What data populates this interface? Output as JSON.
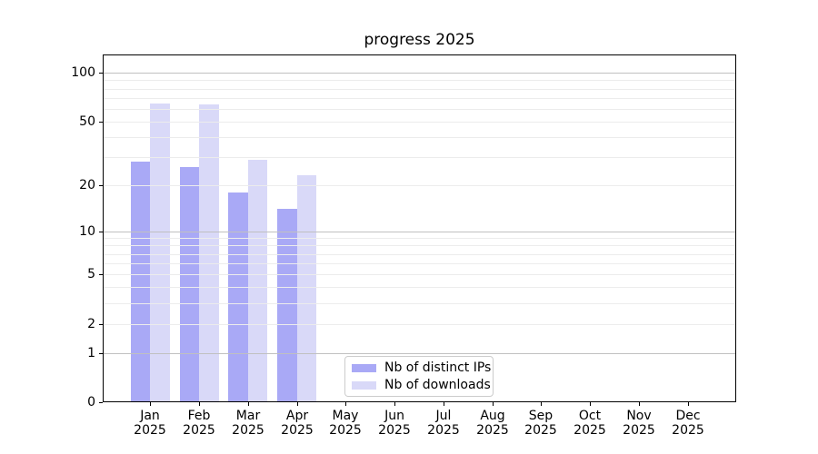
{
  "title": "progress 2025",
  "chart_data": {
    "type": "bar",
    "title": "progress 2025",
    "categories": [
      {
        "month": "Jan",
        "year": "2025"
      },
      {
        "month": "Feb",
        "year": "2025"
      },
      {
        "month": "Mar",
        "year": "2025"
      },
      {
        "month": "Apr",
        "year": "2025"
      },
      {
        "month": "May",
        "year": "2025"
      },
      {
        "month": "Jun",
        "year": "2025"
      },
      {
        "month": "Jul",
        "year": "2025"
      },
      {
        "month": "Aug",
        "year": "2025"
      },
      {
        "month": "Sep",
        "year": "2025"
      },
      {
        "month": "Oct",
        "year": "2025"
      },
      {
        "month": "Nov",
        "year": "2025"
      },
      {
        "month": "Dec",
        "year": "2025"
      }
    ],
    "series": [
      {
        "name": "Nb of distinct IPs",
        "color": "#a9a9f6",
        "values": [
          28,
          26,
          18,
          14,
          null,
          null,
          null,
          null,
          null,
          null,
          null,
          null
        ]
      },
      {
        "name": "Nb of downloads",
        "color": "#d9d9f8",
        "values": [
          65,
          64,
          29,
          23,
          null,
          null,
          null,
          null,
          null,
          null,
          null,
          null
        ]
      }
    ],
    "y_axis": {
      "scale": "log10(value+1)",
      "tick_values": [
        0,
        1,
        2,
        5,
        10,
        20,
        50,
        100
      ],
      "major_grid_values": [
        1,
        10,
        100
      ],
      "minor_grid_values": [
        2,
        3,
        4,
        5,
        6,
        7,
        8,
        9,
        20,
        30,
        40,
        50,
        60,
        70,
        80,
        90
      ],
      "ylim": [
        0,
        135
      ]
    },
    "legend": {
      "position": "lower center"
    },
    "grid": true
  },
  "colors": {
    "grid_major": "#c0c0c0",
    "grid_minor": "#ececec",
    "axis": "#000000",
    "background": "#ffffff",
    "legend_border": "#cccccc"
  }
}
